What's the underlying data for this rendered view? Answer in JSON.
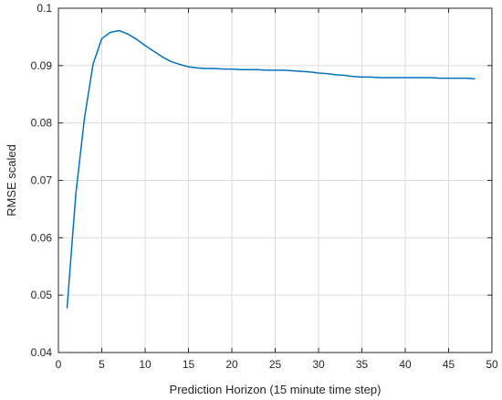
{
  "chart_data": {
    "type": "line",
    "xlabel": "Prediction Horizon (15 minute time step)",
    "ylabel": "RMSE scaled",
    "xlim": [
      0,
      50
    ],
    "ylim": [
      0.04,
      0.1
    ],
    "xticks": [
      0,
      5,
      10,
      15,
      20,
      25,
      30,
      35,
      40,
      45,
      50
    ],
    "yticks": [
      0.04,
      0.05,
      0.06,
      0.07,
      0.08,
      0.09,
      0.1
    ],
    "xtick_labels": [
      "0",
      "5",
      "10",
      "15",
      "20",
      "25",
      "30",
      "35",
      "40",
      "45",
      "50"
    ],
    "ytick_labels": [
      "0.04",
      "0.05",
      "0.06",
      "0.07",
      "0.08",
      "0.09",
      "0.1"
    ],
    "grid": true,
    "line_color": "#0072bd",
    "series": [
      {
        "x": [
          1,
          2,
          3,
          4,
          5,
          6,
          7,
          8,
          9,
          10,
          11,
          12,
          13,
          14,
          15,
          16,
          17,
          18,
          19,
          20,
          21,
          22,
          23,
          24,
          25,
          26,
          27,
          28,
          29,
          30,
          31,
          32,
          33,
          34,
          35,
          36,
          37,
          38,
          39,
          40,
          41,
          42,
          43,
          44,
          45,
          46,
          47,
          48
        ],
        "values": [
          0.0478,
          0.0675,
          0.0808,
          0.0903,
          0.0947,
          0.0958,
          0.0961,
          0.0955,
          0.0946,
          0.0935,
          0.0925,
          0.0915,
          0.0907,
          0.0902,
          0.0898,
          0.0896,
          0.0895,
          0.0895,
          0.0894,
          0.0894,
          0.0893,
          0.0893,
          0.0893,
          0.0892,
          0.0892,
          0.0892,
          0.0891,
          0.089,
          0.0889,
          0.0887,
          0.0886,
          0.0884,
          0.0883,
          0.0881,
          0.088,
          0.088,
          0.0879,
          0.0879,
          0.0879,
          0.0879,
          0.0879,
          0.0879,
          0.0879,
          0.0878,
          0.0878,
          0.0878,
          0.0878,
          0.0877
        ]
      }
    ]
  }
}
